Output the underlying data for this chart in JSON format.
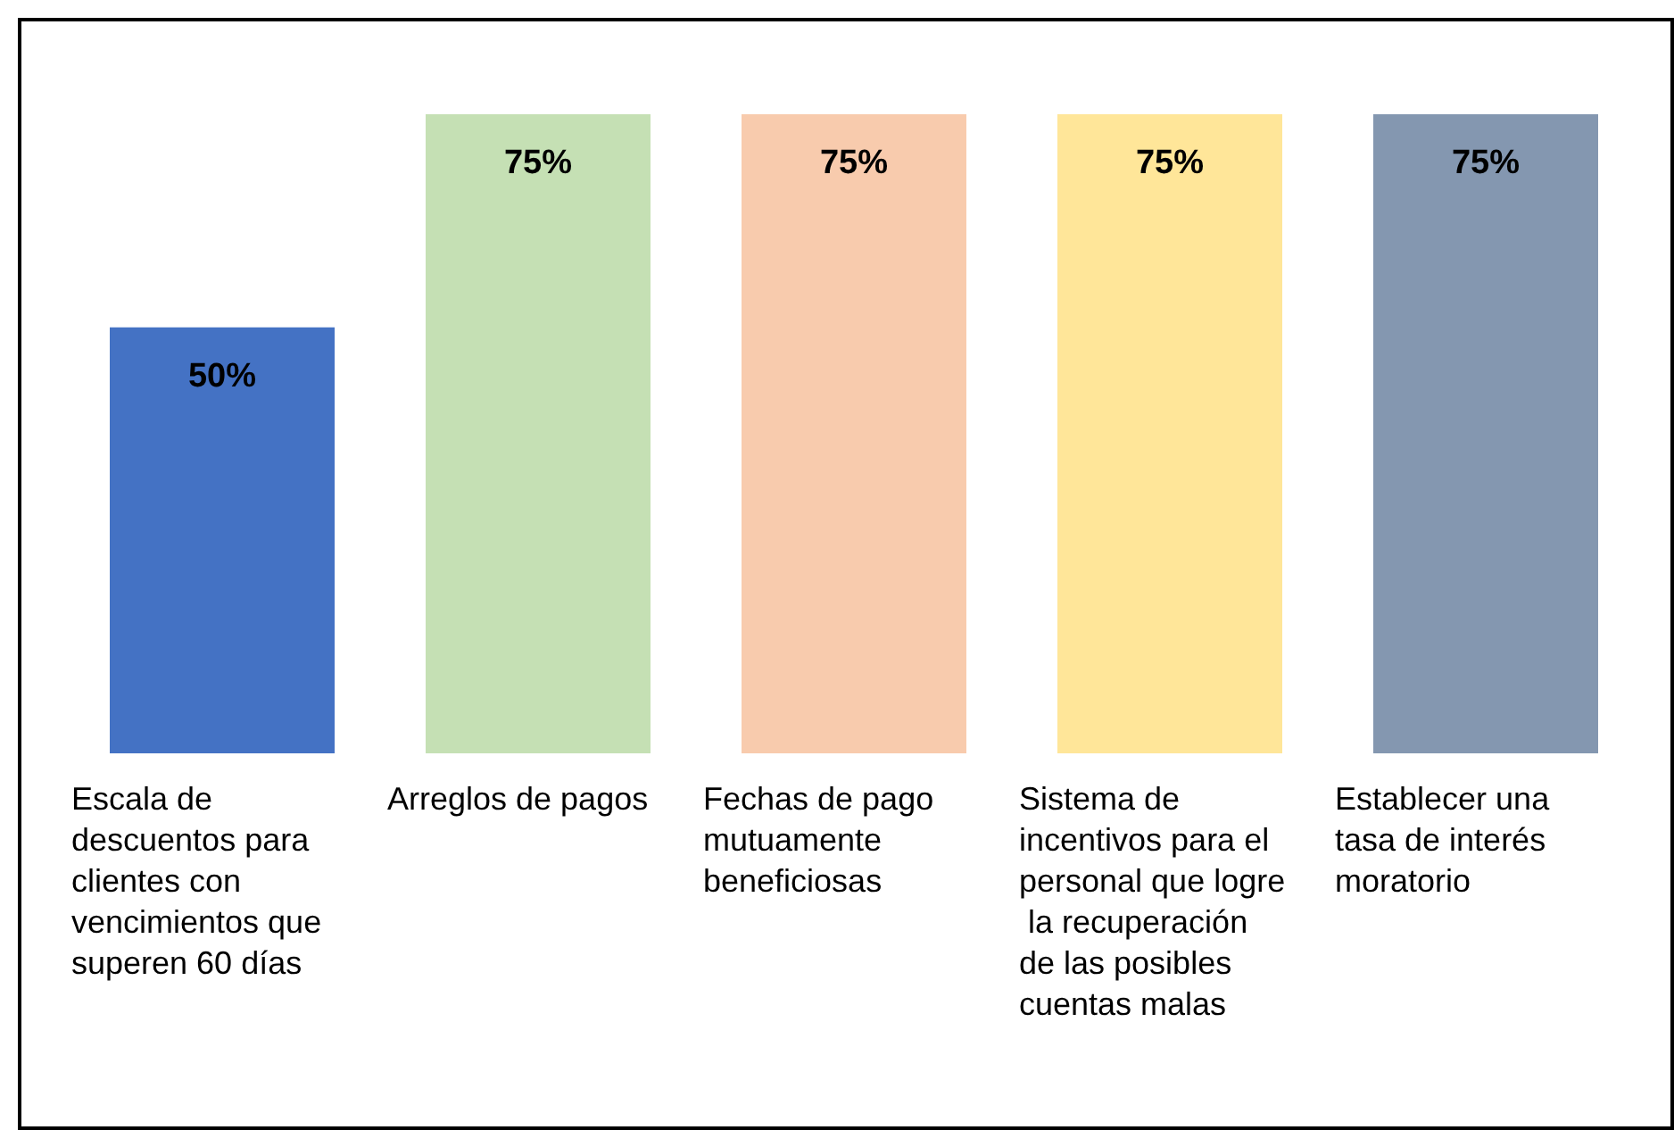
{
  "chart_data": {
    "type": "bar",
    "categories": [
      "Escala de descuentos para clientes con vencimientos que superen 60 días",
      "Arreglos de pagos",
      "Fechas de pago mutuamente beneficiosas",
      "Sistema de incentivos para el personal que logre la recuperación de las posibles cuentas malas",
      "Establecer una tasa de interés moratorio"
    ],
    "values": [
      50,
      75,
      75,
      75,
      75
    ],
    "colors": [
      "#4472c4",
      "#c5e0b4",
      "#f8cbad",
      "#ffe699",
      "#8497b0"
    ],
    "value_labels": [
      "50%",
      "75%",
      "75%",
      "75%",
      "75%"
    ],
    "ylim": [
      0,
      75
    ]
  }
}
